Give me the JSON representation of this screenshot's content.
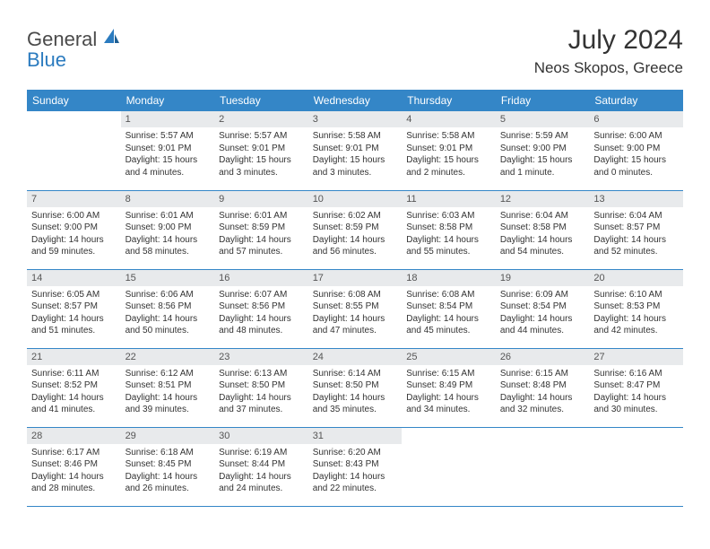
{
  "logo": {
    "general": "General",
    "blue": "Blue"
  },
  "title": "July 2024",
  "location": "Neos Skopos, Greece",
  "colors": {
    "header_bg": "#3486c7",
    "header_text": "#ffffff",
    "daynum_bg": "#e8eaec",
    "border": "#3486c7",
    "text": "#333333",
    "logo_gray": "#4a4a4a",
    "logo_blue": "#2b7bbf"
  },
  "weekdays": [
    "Sunday",
    "Monday",
    "Tuesday",
    "Wednesday",
    "Thursday",
    "Friday",
    "Saturday"
  ],
  "weeks": [
    [
      {
        "n": "",
        "sr": "",
        "ss": "",
        "dl": ""
      },
      {
        "n": "1",
        "sr": "Sunrise: 5:57 AM",
        "ss": "Sunset: 9:01 PM",
        "dl": "Daylight: 15 hours and 4 minutes."
      },
      {
        "n": "2",
        "sr": "Sunrise: 5:57 AM",
        "ss": "Sunset: 9:01 PM",
        "dl": "Daylight: 15 hours and 3 minutes."
      },
      {
        "n": "3",
        "sr": "Sunrise: 5:58 AM",
        "ss": "Sunset: 9:01 PM",
        "dl": "Daylight: 15 hours and 3 minutes."
      },
      {
        "n": "4",
        "sr": "Sunrise: 5:58 AM",
        "ss": "Sunset: 9:01 PM",
        "dl": "Daylight: 15 hours and 2 minutes."
      },
      {
        "n": "5",
        "sr": "Sunrise: 5:59 AM",
        "ss": "Sunset: 9:00 PM",
        "dl": "Daylight: 15 hours and 1 minute."
      },
      {
        "n": "6",
        "sr": "Sunrise: 6:00 AM",
        "ss": "Sunset: 9:00 PM",
        "dl": "Daylight: 15 hours and 0 minutes."
      }
    ],
    [
      {
        "n": "7",
        "sr": "Sunrise: 6:00 AM",
        "ss": "Sunset: 9:00 PM",
        "dl": "Daylight: 14 hours and 59 minutes."
      },
      {
        "n": "8",
        "sr": "Sunrise: 6:01 AM",
        "ss": "Sunset: 9:00 PM",
        "dl": "Daylight: 14 hours and 58 minutes."
      },
      {
        "n": "9",
        "sr": "Sunrise: 6:01 AM",
        "ss": "Sunset: 8:59 PM",
        "dl": "Daylight: 14 hours and 57 minutes."
      },
      {
        "n": "10",
        "sr": "Sunrise: 6:02 AM",
        "ss": "Sunset: 8:59 PM",
        "dl": "Daylight: 14 hours and 56 minutes."
      },
      {
        "n": "11",
        "sr": "Sunrise: 6:03 AM",
        "ss": "Sunset: 8:58 PM",
        "dl": "Daylight: 14 hours and 55 minutes."
      },
      {
        "n": "12",
        "sr": "Sunrise: 6:04 AM",
        "ss": "Sunset: 8:58 PM",
        "dl": "Daylight: 14 hours and 54 minutes."
      },
      {
        "n": "13",
        "sr": "Sunrise: 6:04 AM",
        "ss": "Sunset: 8:57 PM",
        "dl": "Daylight: 14 hours and 52 minutes."
      }
    ],
    [
      {
        "n": "14",
        "sr": "Sunrise: 6:05 AM",
        "ss": "Sunset: 8:57 PM",
        "dl": "Daylight: 14 hours and 51 minutes."
      },
      {
        "n": "15",
        "sr": "Sunrise: 6:06 AM",
        "ss": "Sunset: 8:56 PM",
        "dl": "Daylight: 14 hours and 50 minutes."
      },
      {
        "n": "16",
        "sr": "Sunrise: 6:07 AM",
        "ss": "Sunset: 8:56 PM",
        "dl": "Daylight: 14 hours and 48 minutes."
      },
      {
        "n": "17",
        "sr": "Sunrise: 6:08 AM",
        "ss": "Sunset: 8:55 PM",
        "dl": "Daylight: 14 hours and 47 minutes."
      },
      {
        "n": "18",
        "sr": "Sunrise: 6:08 AM",
        "ss": "Sunset: 8:54 PM",
        "dl": "Daylight: 14 hours and 45 minutes."
      },
      {
        "n": "19",
        "sr": "Sunrise: 6:09 AM",
        "ss": "Sunset: 8:54 PM",
        "dl": "Daylight: 14 hours and 44 minutes."
      },
      {
        "n": "20",
        "sr": "Sunrise: 6:10 AM",
        "ss": "Sunset: 8:53 PM",
        "dl": "Daylight: 14 hours and 42 minutes."
      }
    ],
    [
      {
        "n": "21",
        "sr": "Sunrise: 6:11 AM",
        "ss": "Sunset: 8:52 PM",
        "dl": "Daylight: 14 hours and 41 minutes."
      },
      {
        "n": "22",
        "sr": "Sunrise: 6:12 AM",
        "ss": "Sunset: 8:51 PM",
        "dl": "Daylight: 14 hours and 39 minutes."
      },
      {
        "n": "23",
        "sr": "Sunrise: 6:13 AM",
        "ss": "Sunset: 8:50 PM",
        "dl": "Daylight: 14 hours and 37 minutes."
      },
      {
        "n": "24",
        "sr": "Sunrise: 6:14 AM",
        "ss": "Sunset: 8:50 PM",
        "dl": "Daylight: 14 hours and 35 minutes."
      },
      {
        "n": "25",
        "sr": "Sunrise: 6:15 AM",
        "ss": "Sunset: 8:49 PM",
        "dl": "Daylight: 14 hours and 34 minutes."
      },
      {
        "n": "26",
        "sr": "Sunrise: 6:15 AM",
        "ss": "Sunset: 8:48 PM",
        "dl": "Daylight: 14 hours and 32 minutes."
      },
      {
        "n": "27",
        "sr": "Sunrise: 6:16 AM",
        "ss": "Sunset: 8:47 PM",
        "dl": "Daylight: 14 hours and 30 minutes."
      }
    ],
    [
      {
        "n": "28",
        "sr": "Sunrise: 6:17 AM",
        "ss": "Sunset: 8:46 PM",
        "dl": "Daylight: 14 hours and 28 minutes."
      },
      {
        "n": "29",
        "sr": "Sunrise: 6:18 AM",
        "ss": "Sunset: 8:45 PM",
        "dl": "Daylight: 14 hours and 26 minutes."
      },
      {
        "n": "30",
        "sr": "Sunrise: 6:19 AM",
        "ss": "Sunset: 8:44 PM",
        "dl": "Daylight: 14 hours and 24 minutes."
      },
      {
        "n": "31",
        "sr": "Sunrise: 6:20 AM",
        "ss": "Sunset: 8:43 PM",
        "dl": "Daylight: 14 hours and 22 minutes."
      },
      {
        "n": "",
        "sr": "",
        "ss": "",
        "dl": ""
      },
      {
        "n": "",
        "sr": "",
        "ss": "",
        "dl": ""
      },
      {
        "n": "",
        "sr": "",
        "ss": "",
        "dl": ""
      }
    ]
  ]
}
